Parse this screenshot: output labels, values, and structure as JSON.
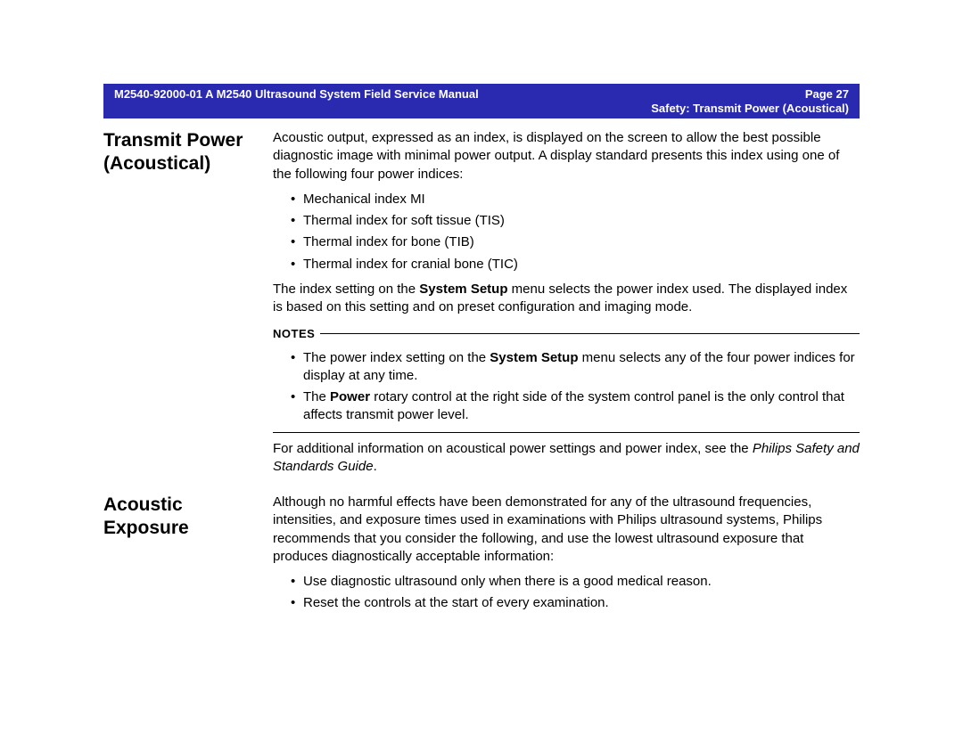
{
  "header": {
    "doc_left": "M2540-92000-01 A M2540 Ultrasound System Field Service Manual",
    "page_label": "Page 27",
    "subtitle": "Safety: Transmit Power (Acoustical)"
  },
  "section1": {
    "heading": "Transmit Power (Acoustical)",
    "intro": "Acoustic output, expressed as an index, is displayed on the screen to allow the best possible diagnostic image with minimal power output. A display standard presents this index using one of the following four power indices:",
    "indices": [
      "Mechanical index MI",
      "Thermal index for soft tissue (TIS)",
      "Thermal index for bone (TIB)",
      "Thermal index for cranial bone (TIC)"
    ],
    "setup_pre": "The index setting on the ",
    "setup_bold": "System Setup",
    "setup_post": " menu selects the power index used. The displayed index is based on this setting and on preset configuration and imaging mode.",
    "notes_label": "NOTES",
    "note1_pre": "The power index setting on the ",
    "note1_bold": "System Setup",
    "note1_post": " menu selects any of the four power indices for display at any time.",
    "note2_pre": "The ",
    "note2_bold": "Power",
    "note2_post": " rotary control at the right side of the system control panel is the only control that affects transmit power level.",
    "addl_pre": "For additional information on acoustical power settings and power index, see the ",
    "addl_italic": "Philips Safety and Standards Guide",
    "addl_post": "."
  },
  "section2": {
    "heading": "Acoustic Exposure",
    "intro": "Although no harmful effects have been demonstrated for any of the ultrasound frequencies, intensities, and exposure times used in examinations with Philips ultrasound systems, Philips recommends that you consider the following, and use the lowest ultrasound exposure that produces diagnostically acceptable information:",
    "bullets": [
      "Use diagnostic ultrasound only when there is a good medical reason.",
      "Reset the controls at the start of every examination."
    ]
  },
  "style": {
    "header_bg": "#2a2ab0",
    "header_text": "#ffffff",
    "body_text": "#000000",
    "page_bg": "#ffffff",
    "heading_fontsize": 21,
    "body_fontsize": 15,
    "header_fontsize": 13
  }
}
